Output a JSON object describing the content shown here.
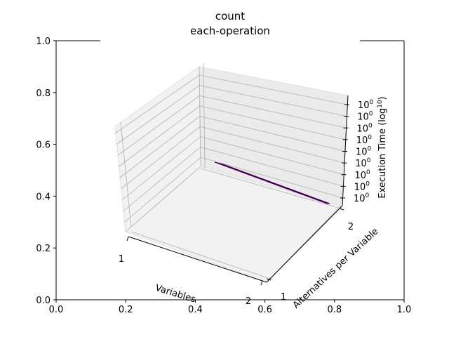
{
  "chart_data": {
    "type": "surface",
    "title_lines": [
      "count",
      "each-operation"
    ],
    "outer_axes": {
      "xticks": [
        "0.0",
        "0.2",
        "0.4",
        "0.6",
        "0.8",
        "1.0"
      ],
      "yticks": [
        "0.0",
        "0.2",
        "0.4",
        "0.6",
        "0.8",
        "1.0"
      ],
      "xlim": [
        0,
        1
      ],
      "ylim": [
        0,
        1
      ]
    },
    "x_axis": {
      "label": "Variables",
      "ticks": [
        "1",
        "2"
      ],
      "range": [
        1,
        2
      ]
    },
    "y_axis": {
      "label": "Alternatives per Variable",
      "ticks": [
        "1",
        "2"
      ],
      "range": [
        1,
        2
      ]
    },
    "z_axis": {
      "label": "Execution Time (log",
      "label_superscript": "10",
      "label_suffix": ")",
      "tick_base": "10",
      "tick_exponent": "0",
      "tick_count": 9,
      "scale": "log"
    },
    "surface": {
      "x": [
        1,
        2
      ],
      "y": [
        1,
        2
      ],
      "z": [
        [
          1,
          1
        ],
        [
          1,
          1
        ]
      ],
      "color": "#440154"
    },
    "colors": {
      "surface": "#440154",
      "pane": "#f2f2f2",
      "grid": "#b0b0b0"
    }
  }
}
